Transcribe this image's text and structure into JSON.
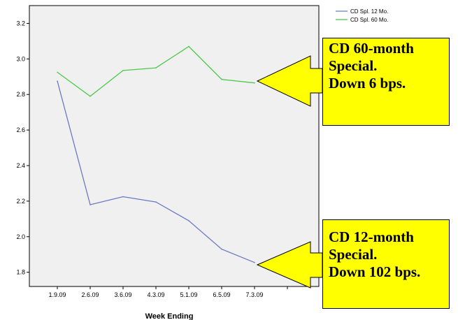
{
  "chart_data": {
    "type": "line",
    "categories": [
      "1.9.09",
      "2.6.09",
      "3.6.09",
      "4.3.09",
      "5.1.09",
      "6.5.09",
      "7.3.09"
    ],
    "series": [
      {
        "name": "CD Spl. 12 Mo.",
        "color": "#6b79c4",
        "values": [
          2.875,
          2.18,
          2.225,
          2.195,
          2.09,
          1.93,
          1.855
        ]
      },
      {
        "name": "CD Spl. 60 Mo.",
        "color": "#4cc94c",
        "values": [
          2.925,
          2.79,
          2.935,
          2.95,
          3.07,
          2.885,
          2.865
        ]
      }
    ],
    "xlabel": "Week Ending",
    "ylabel": "",
    "ylim": [
      1.72,
      3.3
    ],
    "yticks": [
      "1.8",
      "2.0",
      "2.2",
      "2.4",
      "2.6",
      "2.8",
      "3.0",
      "3.2"
    ],
    "grid": false,
    "legend_position": "top-right",
    "plot_background": "#f0f0f0"
  },
  "callouts": {
    "sixty": {
      "lines": [
        "CD 60-month",
        "Special.",
        "Down 6 bps."
      ],
      "color": "#ffff00"
    },
    "twelve": {
      "lines": [
        "CD 12-month",
        "Special.",
        "Down 102 bps."
      ],
      "color": "#ffff00"
    }
  }
}
